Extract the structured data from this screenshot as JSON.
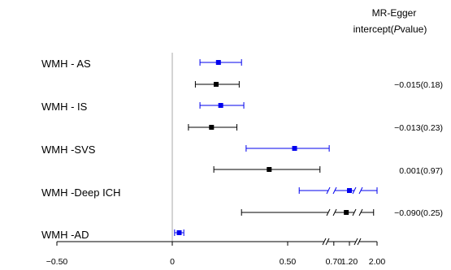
{
  "header": {
    "line1": "MR-Egger",
    "line2_prefix": "intercept(",
    "line2_italic": "P",
    "line2_suffix": "value)"
  },
  "chart_data": {
    "type": "forest",
    "xlabel": "",
    "ylabel": "",
    "title": "",
    "x_ticks": [
      "−0.50",
      "0",
      "0.50",
      "0.70",
      "1.20",
      "2.00"
    ],
    "colors": {
      "blue": "#0000ee",
      "black": "#000000",
      "zero_line": "#aaaaaa"
    },
    "axis_break": "between 0.70 and 1.20",
    "rows": [
      {
        "label": "WMH - AS",
        "annotation": "−0.015(0.18)",
        "estimates": [
          {
            "color": "blue",
            "est": 0.2,
            "lo": 0.12,
            "hi": 0.3
          },
          {
            "color": "black",
            "est": 0.19,
            "lo": 0.1,
            "hi": 0.29
          }
        ]
      },
      {
        "label": "WMH - IS",
        "annotation": "−0.013(0.23)",
        "estimates": [
          {
            "color": "blue",
            "est": 0.21,
            "lo": 0.12,
            "hi": 0.31
          },
          {
            "color": "black",
            "est": 0.17,
            "lo": 0.07,
            "hi": 0.28
          }
        ]
      },
      {
        "label": "WMH -SVS",
        "annotation": "0.001(0.97)",
        "estimates": [
          {
            "color": "blue",
            "est": 0.53,
            "lo": 0.32,
            "hi": 0.68
          },
          {
            "color": "black",
            "est": 0.42,
            "lo": 0.18,
            "hi": 0.64
          }
        ]
      },
      {
        "label": "WMH -Deep ICH",
        "annotation": "−0.090(0.25)",
        "estimates": [
          {
            "color": "blue",
            "est": 1.2,
            "lo": 0.55,
            "hi": 2.0
          },
          {
            "color": "black",
            "est": 1.1,
            "lo": 0.3,
            "hi": 1.9
          }
        ]
      },
      {
        "label": "WMH -AD",
        "annotation": "",
        "estimates": [
          {
            "color": "blue",
            "est": 0.03,
            "lo": 0.01,
            "hi": 0.05
          }
        ]
      }
    ]
  }
}
